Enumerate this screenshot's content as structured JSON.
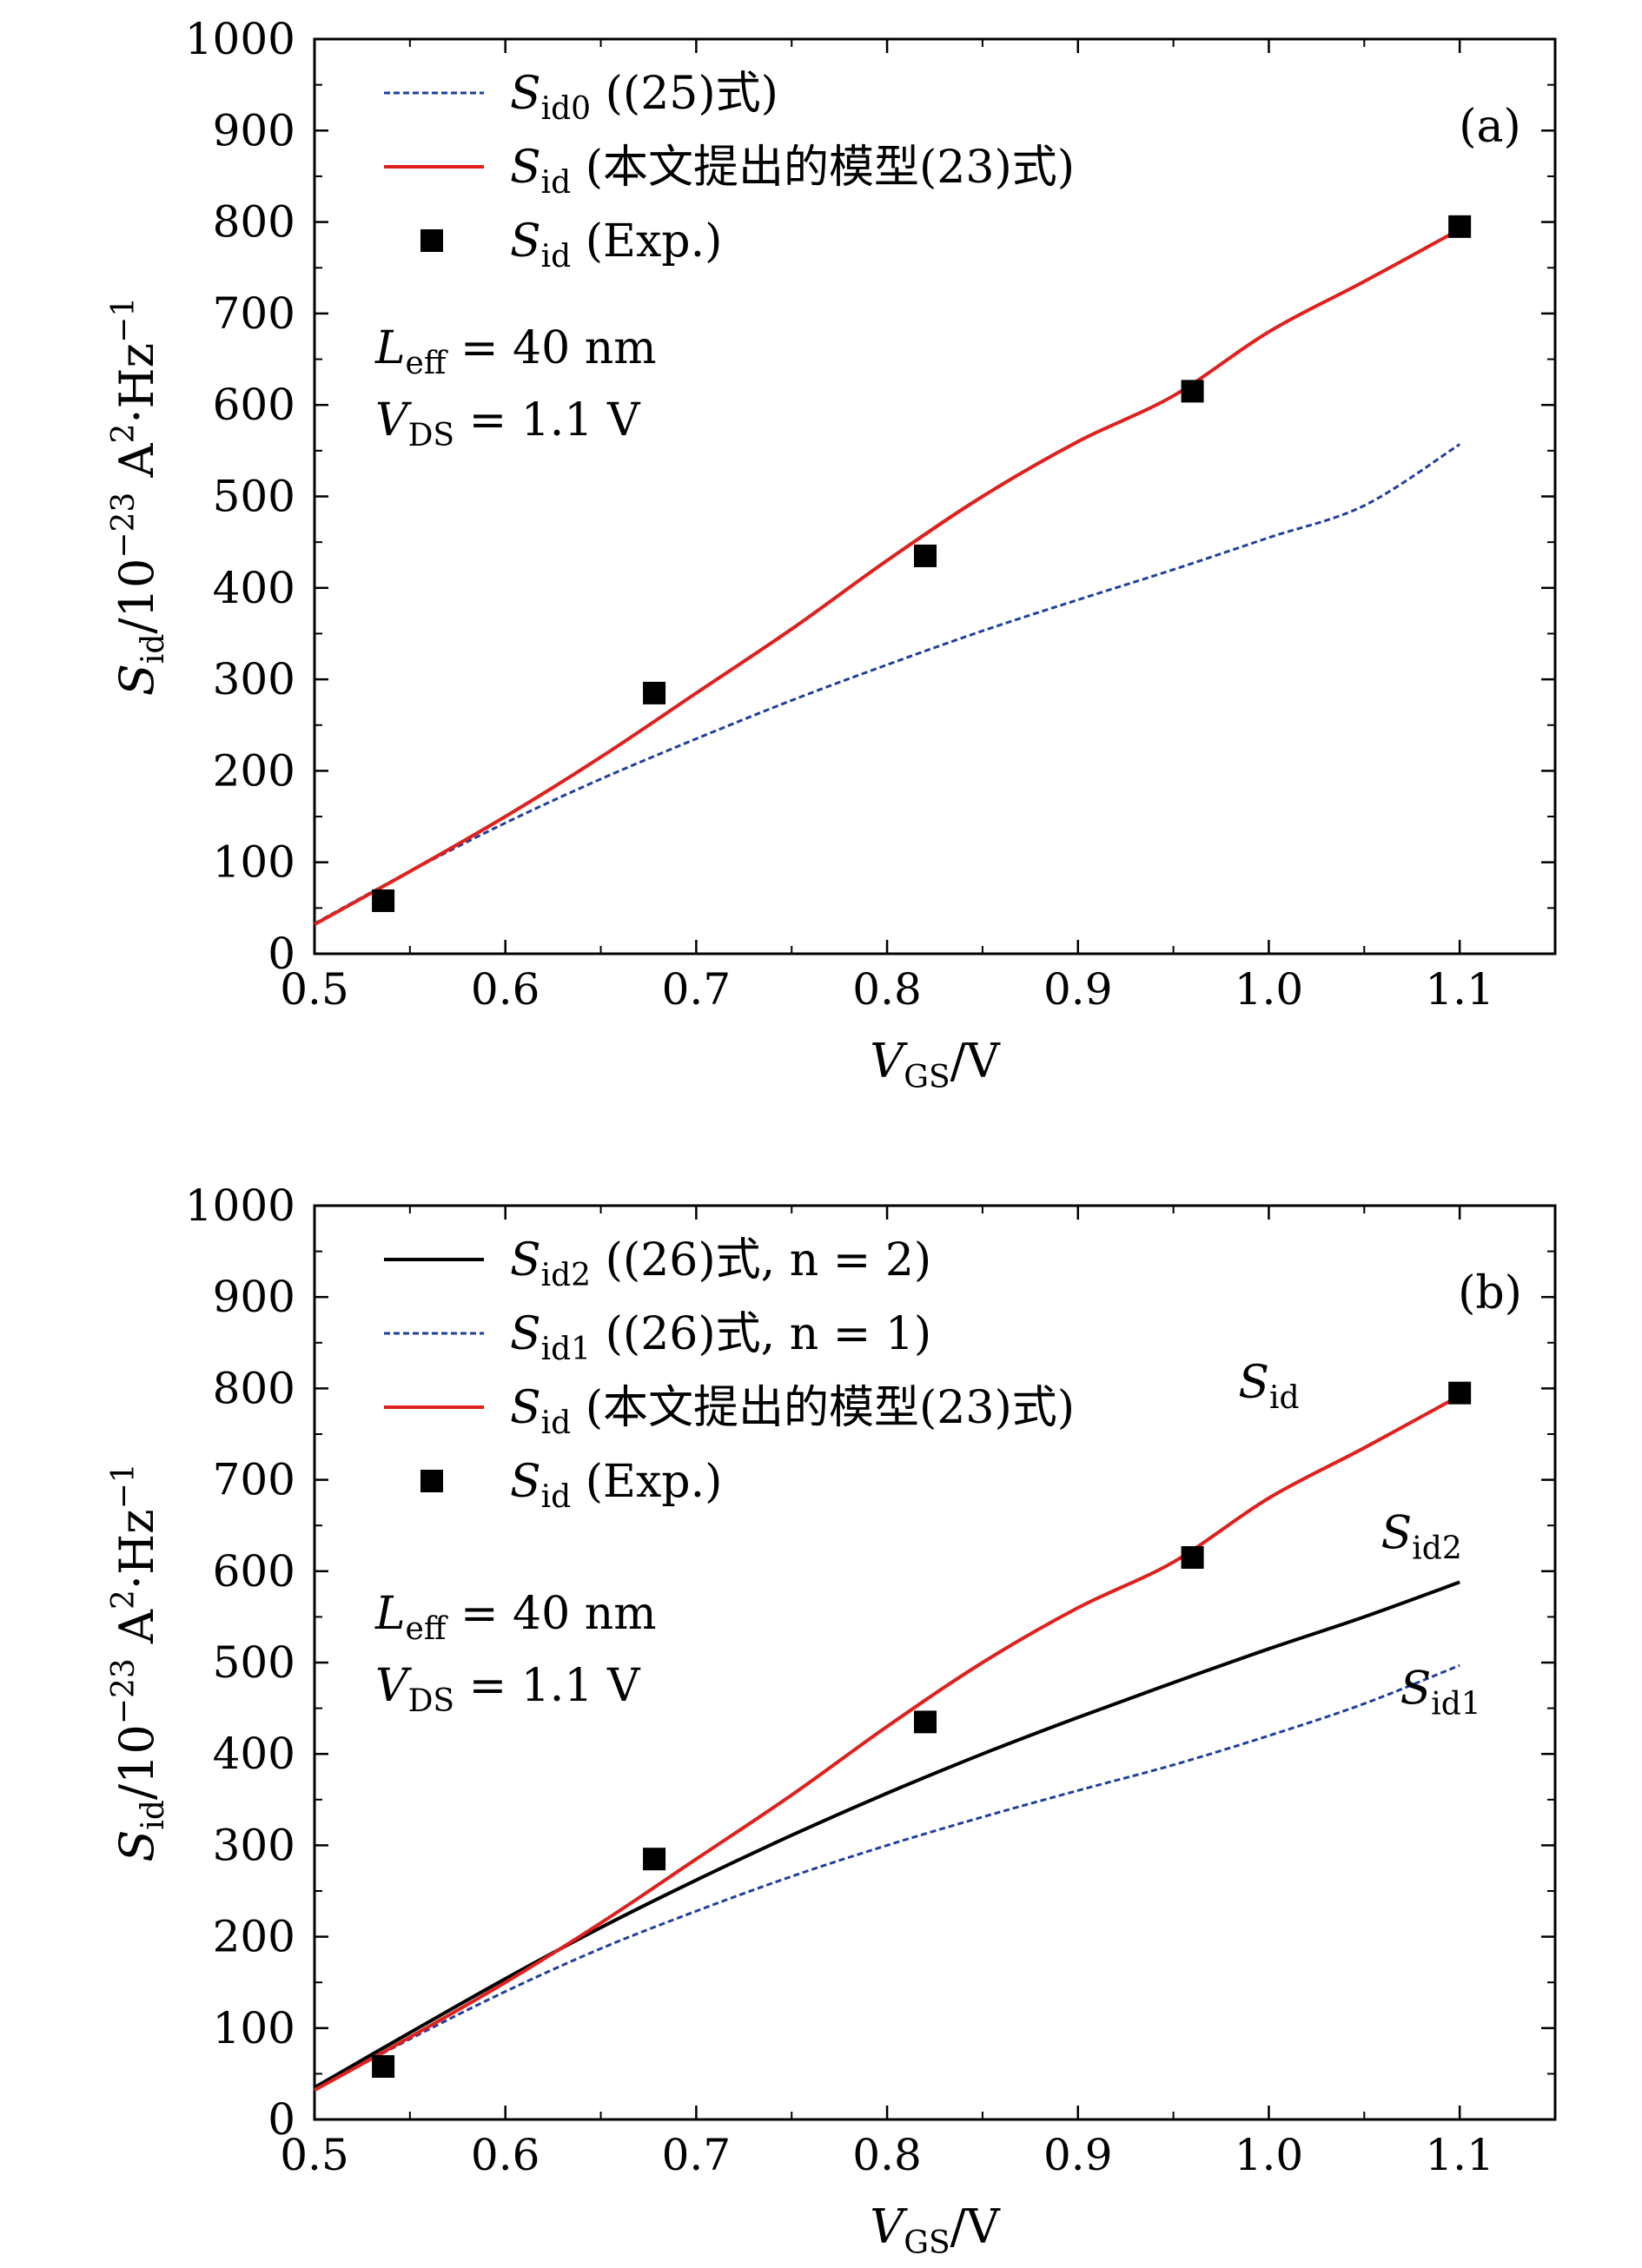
{
  "figure": {
    "panels": [
      "a",
      "b"
    ]
  },
  "chart_data": [
    {
      "panel": "a",
      "type": "line",
      "panel_label": "(a)",
      "xlabel": {
        "main": "V",
        "sub": "GS",
        "tail": "/V"
      },
      "ylabel": {
        "main": "S",
        "sub": "id",
        "mid": "/10",
        "sup": "−23",
        "tail1": " A",
        "sup2": "2",
        "tail2": "·Hz",
        "sup3": "−1"
      },
      "xlim": [
        0.5,
        1.15
      ],
      "ylim": [
        0,
        1000
      ],
      "xticks": [
        0.5,
        0.6,
        0.7,
        0.8,
        0.9,
        1.0,
        1.1
      ],
      "xtick_labels": [
        "0.5",
        "0.6",
        "0.7",
        "0.8",
        "0.9",
        "1.0",
        "1.1"
      ],
      "yticks": [
        0,
        100,
        200,
        300,
        400,
        500,
        600,
        700,
        800,
        900,
        1000
      ],
      "ytick_labels": [
        "0",
        "100",
        "200",
        "300",
        "400",
        "500",
        "600",
        "700",
        "800",
        "900",
        "1000"
      ],
      "annotations": {
        "leff": {
          "main": "L",
          "sub": "eff",
          "tail": " = 40 nm"
        },
        "vds": {
          "main": "V",
          "sub": "DS",
          "tail": " = 1.1 V"
        }
      },
      "series": [
        {
          "name": "Sid0",
          "legend": {
            "main": "S",
            "sub": "id0",
            "tail": " ((25)式)"
          },
          "style": "dashed",
          "color": "#1f3fa0",
          "x": [
            0.5,
            0.55,
            0.6,
            0.65,
            0.7,
            0.75,
            0.8,
            0.85,
            0.9,
            0.95,
            1.0,
            1.05,
            1.1
          ],
          "y": [
            33,
            90,
            143,
            191,
            235,
            277,
            316,
            353,
            387,
            420,
            455,
            490,
            557
          ]
        },
        {
          "name": "Sid",
          "legend": {
            "main": "S",
            "sub": "id",
            "tail": " (本文提出的模型(23)式)"
          },
          "style": "solid",
          "color": "#e0201c",
          "x": [
            0.5,
            0.55,
            0.6,
            0.65,
            0.7,
            0.75,
            0.8,
            0.85,
            0.9,
            0.95,
            1.0,
            1.05,
            1.1
          ],
          "y": [
            32,
            90,
            150,
            215,
            285,
            355,
            430,
            500,
            560,
            610,
            680,
            735,
            792
          ]
        },
        {
          "name": "Sid (Exp.)",
          "legend": {
            "main": "S",
            "sub": "id",
            "tail": " (Exp.)"
          },
          "style": "marker",
          "color": "#000000",
          "x": [
            0.536,
            0.678,
            0.82,
            0.96,
            1.1
          ],
          "y": [
            58,
            285,
            435,
            615,
            795
          ]
        }
      ]
    },
    {
      "panel": "b",
      "type": "line",
      "panel_label": "(b)",
      "xlabel": {
        "main": "V",
        "sub": "GS",
        "tail": "/V"
      },
      "ylabel": {
        "main": "S",
        "sub": "id",
        "mid": "/10",
        "sup": "−23",
        "tail1": " A",
        "sup2": "2",
        "tail2": "·Hz",
        "sup3": "−1"
      },
      "xlim": [
        0.5,
        1.15
      ],
      "ylim": [
        0,
        1000
      ],
      "xticks": [
        0.5,
        0.6,
        0.7,
        0.8,
        0.9,
        1.0,
        1.1
      ],
      "xtick_labels": [
        "0.5",
        "0.6",
        "0.7",
        "0.8",
        "0.9",
        "1.0",
        "1.1"
      ],
      "yticks": [
        0,
        100,
        200,
        300,
        400,
        500,
        600,
        700,
        800,
        900,
        1000
      ],
      "ytick_labels": [
        "0",
        "100",
        "200",
        "300",
        "400",
        "500",
        "600",
        "700",
        "800",
        "900",
        "1000"
      ],
      "annotations": {
        "leff": {
          "main": "L",
          "sub": "eff",
          "tail": " = 40 nm"
        },
        "vds": {
          "main": "V",
          "sub": "DS",
          "tail": " = 1.1 V"
        }
      },
      "curve_labels": [
        {
          "main": "S",
          "sub": "id",
          "x": 1.0,
          "y": 790
        },
        {
          "main": "S",
          "sub": "id2",
          "x": 1.08,
          "y": 625
        },
        {
          "main": "S",
          "sub": "id1",
          "x": 1.09,
          "y": 455
        }
      ],
      "series": [
        {
          "name": "Sid2",
          "legend": {
            "main": "S",
            "sub": "id2",
            "tail": " ((26)式, n = 2)"
          },
          "style": "solid",
          "color": "#000000",
          "x": [
            0.5,
            0.55,
            0.6,
            0.65,
            0.7,
            0.75,
            0.8,
            0.85,
            0.9,
            0.95,
            1.0,
            1.05,
            1.1
          ],
          "y": [
            35,
            95,
            154,
            210,
            262,
            311,
            357,
            400,
            440,
            478,
            515,
            550,
            588
          ]
        },
        {
          "name": "Sid1",
          "legend": {
            "main": "S",
            "sub": "id1",
            "tail": " ((26)式, n = 1)"
          },
          "style": "dashed",
          "color": "#1f3fa0",
          "x": [
            0.5,
            0.55,
            0.6,
            0.65,
            0.7,
            0.75,
            0.8,
            0.85,
            0.9,
            0.95,
            1.0,
            1.05,
            1.1
          ],
          "y": [
            32,
            88,
            140,
            187,
            228,
            266,
            300,
            331,
            360,
            388,
            420,
            455,
            497
          ]
        },
        {
          "name": "Sid",
          "legend": {
            "main": "S",
            "sub": "id",
            "tail": " (本文提出的模型(23)式)"
          },
          "style": "solid",
          "color": "#e0201c",
          "x": [
            0.5,
            0.55,
            0.6,
            0.65,
            0.7,
            0.75,
            0.8,
            0.85,
            0.9,
            0.95,
            1.0,
            1.05,
            1.1
          ],
          "y": [
            32,
            90,
            150,
            215,
            285,
            355,
            430,
            500,
            560,
            610,
            680,
            735,
            792
          ]
        },
        {
          "name": "Sid (Exp.)",
          "legend": {
            "main": "S",
            "sub": "id",
            "tail": " (Exp.)"
          },
          "style": "marker",
          "color": "#000000",
          "x": [
            0.536,
            0.678,
            0.82,
            0.96,
            1.1
          ],
          "y": [
            58,
            285,
            435,
            615,
            795
          ]
        }
      ]
    }
  ]
}
